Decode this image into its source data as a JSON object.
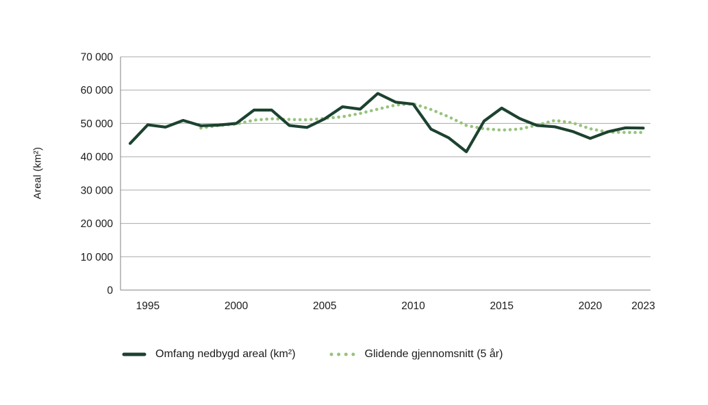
{
  "chart_data": {
    "type": "line",
    "title": "",
    "xlabel": "",
    "ylabel": "Areal (km²)",
    "ylim": [
      0,
      70000
    ],
    "x_range": [
      1994,
      2023
    ],
    "grid": "horizontal",
    "legend_position": "bottom",
    "yticks": {
      "values": [
        0,
        10000,
        20000,
        30000,
        40000,
        50000,
        60000,
        70000
      ],
      "labels": [
        "0",
        "10 000",
        "20 000",
        "30 000",
        "40 000",
        "50 000",
        "60 000",
        "70 000"
      ]
    },
    "xticks": {
      "values": [
        1995,
        2000,
        2005,
        2010,
        2015,
        2020,
        2023
      ],
      "labels": [
        "1995",
        "2000",
        "2005",
        "2010",
        "2015",
        "2020",
        "2023"
      ]
    },
    "series": [
      {
        "key": "omfang-nedbygd-areal",
        "name": "Omfang nedbygd areal (km²)",
        "style": "solid",
        "color": "#1c4230",
        "x": [
          1994,
          1995,
          1996,
          1997,
          1998,
          1999,
          2000,
          2001,
          2002,
          2003,
          2004,
          2005,
          2006,
          2007,
          2008,
          2009,
          2010,
          2011,
          2012,
          2013,
          2014,
          2015,
          2016,
          2017,
          2018,
          2019,
          2020,
          2021,
          2022,
          2023
        ],
        "values": [
          44000,
          49600,
          48900,
          50900,
          49300,
          49500,
          50000,
          54000,
          54000,
          49400,
          48800,
          51400,
          55000,
          54300,
          59000,
          56400,
          55800,
          48300,
          45700,
          41500,
          50700,
          54600,
          51500,
          49400,
          49000,
          47600,
          45500,
          47500,
          48700,
          48600
        ]
      },
      {
        "key": "glidende-gjennomsnitt",
        "name": "Glidende gjennomsnitt (5 år)",
        "style": "dotted",
        "color": "#98c37e",
        "x": [
          1998,
          1999,
          2000,
          2001,
          2002,
          2003,
          2004,
          2005,
          2006,
          2007,
          2008,
          2009,
          2010,
          2011,
          2012,
          2013,
          2014,
          2015,
          2016,
          2017,
          2018,
          2019,
          2020,
          2021,
          2022,
          2023
        ],
        "values": [
          48600,
          49400,
          49800,
          51000,
          51400,
          51200,
          51100,
          51500,
          52000,
          53000,
          54300,
          55500,
          55900,
          54200,
          52000,
          49400,
          48400,
          48000,
          48300,
          49500,
          50900,
          50200,
          48400,
          47400,
          47300,
          47300
        ]
      }
    ],
    "axis_color": "#808080",
    "gridline_color": "#a8a8a8"
  }
}
